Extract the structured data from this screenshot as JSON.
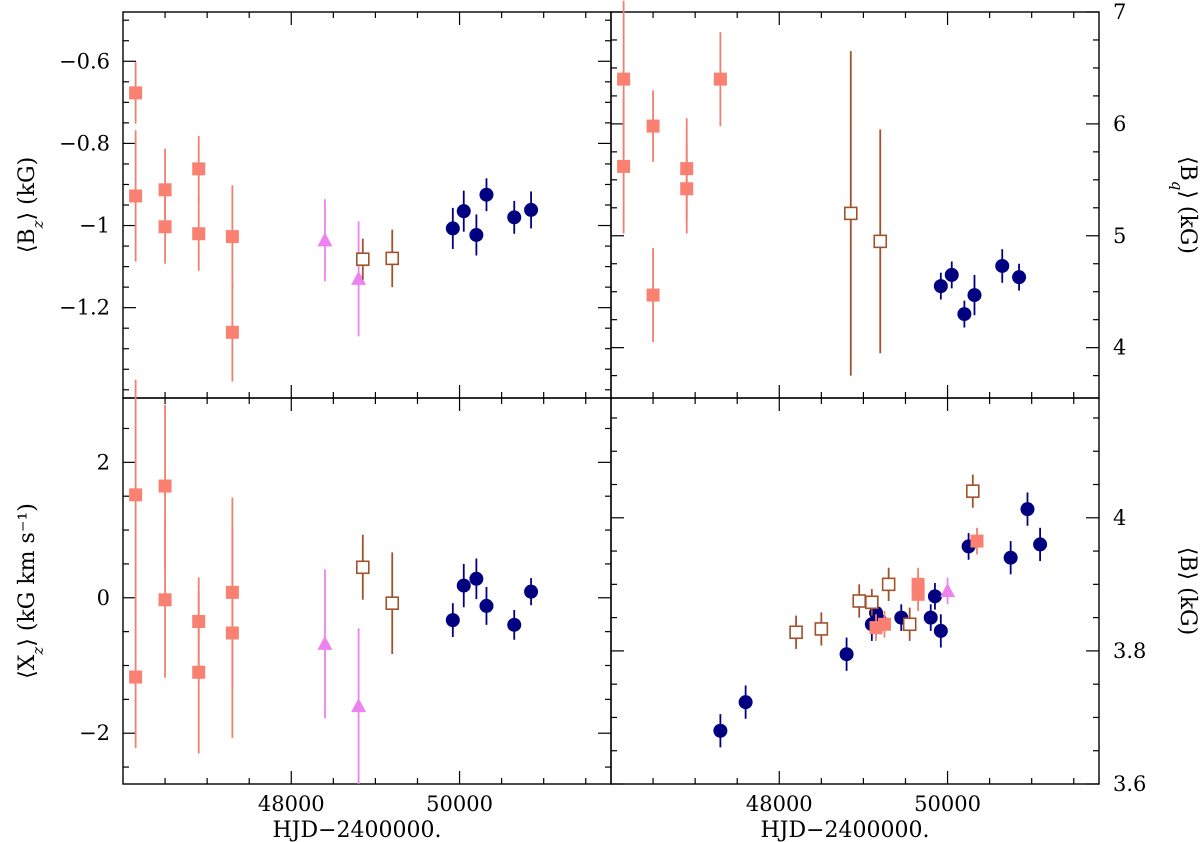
{
  "chart_data": [
    {
      "panel": "top-left",
      "type": "scatter",
      "ylabel": "⟨B_z⟩ (kG)",
      "y_side": "left",
      "xlim": [
        46000,
        51800
      ],
      "ylim": [
        -1.42,
        -0.48
      ],
      "y_inverted": true,
      "y_ticks": [
        -0.6,
        -0.8,
        -1.0,
        -1.2
      ],
      "y_tick_labels": [
        "−0.6",
        "−0.8",
        "−1",
        "−1.2"
      ],
      "series": [
        {
          "name": "salmon filled squares",
          "marker": "square-filled",
          "color": "#FA8072",
          "points": [
            [
              46150,
              -0.677,
              0.075
            ],
            [
              46150,
              -0.928,
              0.16
            ],
            [
              46500,
              -0.913,
              0.1
            ],
            [
              46500,
              -1.003,
              0.09
            ],
            [
              46900,
              -0.862,
              0.08
            ],
            [
              46900,
              -1.02,
              0.09
            ],
            [
              47300,
              -1.027,
              0.125
            ],
            [
              47300,
              -1.26,
              0.12
            ]
          ]
        },
        {
          "name": "violet triangles",
          "marker": "triangle-filled",
          "color": "#EE82EE",
          "points": [
            [
              48400,
              -1.036,
              0.1
            ],
            [
              48800,
              -1.13,
              0.14
            ]
          ]
        },
        {
          "name": "brown open squares",
          "marker": "square-open",
          "color": "#A0522D",
          "points": [
            [
              48850,
              -1.082,
              0.05
            ],
            [
              49200,
              -1.08,
              0.07
            ]
          ]
        },
        {
          "name": "navy circles",
          "marker": "circle-filled",
          "color": "#000080",
          "points": [
            [
              49920,
              -1.007,
              0.05
            ],
            [
              50050,
              -0.965,
              0.05
            ],
            [
              50200,
              -1.023,
              0.05
            ],
            [
              50320,
              -0.925,
              0.04
            ],
            [
              50650,
              -0.98,
              0.04
            ],
            [
              50850,
              -0.962,
              0.045
            ]
          ]
        }
      ]
    },
    {
      "panel": "top-right",
      "type": "scatter",
      "ylabel": "⟨B_q⟩ (kG)",
      "y_side": "right",
      "xlim": [
        46000,
        51800
      ],
      "ylim": [
        3.55,
        7.0
      ],
      "y_inverted": false,
      "y_ticks": [
        4,
        5,
        6,
        7
      ],
      "y_tick_labels": [
        "4",
        "5",
        "6",
        "7"
      ],
      "series": [
        {
          "name": "salmon filled squares",
          "marker": "square-filled",
          "color": "#FA8072",
          "points": [
            [
              46150,
              6.4,
              0.7
            ],
            [
              46150,
              5.62,
              0.6
            ],
            [
              46500,
              5.98,
              0.32
            ],
            [
              46500,
              4.47,
              0.42
            ],
            [
              46900,
              5.6,
              0.45
            ],
            [
              46900,
              5.42,
              0.4
            ],
            [
              47300,
              6.4,
              0.42
            ]
          ]
        },
        {
          "name": "brown open squares",
          "marker": "square-open",
          "color": "#A0522D",
          "points": [
            [
              48850,
              5.2,
              1.45
            ],
            [
              49200,
              4.95,
              1.0
            ]
          ]
        },
        {
          "name": "navy circles",
          "marker": "circle-filled",
          "color": "#000080",
          "points": [
            [
              49920,
              4.55,
              0.12
            ],
            [
              50050,
              4.65,
              0.12
            ],
            [
              50200,
              4.3,
              0.12
            ],
            [
              50320,
              4.47,
              0.18
            ],
            [
              50650,
              4.73,
              0.15
            ],
            [
              50850,
              4.63,
              0.12
            ]
          ]
        }
      ]
    },
    {
      "panel": "bottom-left",
      "type": "scatter",
      "xlabel": "HJD−2400000.",
      "ylabel": "⟨X_z⟩ (kG km s⁻¹)",
      "y_side": "left",
      "xlim": [
        46000,
        51800
      ],
      "ylim": [
        -2.75,
        2.95
      ],
      "y_inverted": false,
      "x_ticks": [
        48000,
        50000
      ],
      "x_tick_labels": [
        "48000",
        "50000"
      ],
      "y_ticks": [
        2,
        0,
        -2
      ],
      "y_tick_labels": [
        "2",
        "0",
        "−2"
      ],
      "series": [
        {
          "name": "salmon filled squares",
          "marker": "square-filled",
          "color": "#FA8072",
          "points": [
            [
              46150,
              1.52,
              1.7
            ],
            [
              46150,
              -1.17,
              1.05
            ],
            [
              46500,
              1.65,
              1.2
            ],
            [
              46500,
              -0.03,
              1.15
            ],
            [
              46900,
              -0.35,
              0.65
            ],
            [
              46900,
              -1.1,
              1.2
            ],
            [
              47300,
              0.08,
              1.4
            ],
            [
              47300,
              -0.52,
              1.55
            ]
          ]
        },
        {
          "name": "violet triangles",
          "marker": "triangle-filled",
          "color": "#EE82EE",
          "points": [
            [
              48400,
              -0.68,
              1.1
            ],
            [
              48800,
              -1.6,
              1.15
            ]
          ]
        },
        {
          "name": "brown open squares",
          "marker": "square-open",
          "color": "#A0522D",
          "points": [
            [
              48850,
              0.45,
              0.48
            ],
            [
              49200,
              -0.08,
              0.75
            ]
          ]
        },
        {
          "name": "navy circles",
          "marker": "circle-filled",
          "color": "#000080",
          "points": [
            [
              49920,
              -0.33,
              0.25
            ],
            [
              50050,
              0.18,
              0.32
            ],
            [
              50200,
              0.28,
              0.3
            ],
            [
              50320,
              -0.12,
              0.28
            ],
            [
              50650,
              -0.4,
              0.22
            ],
            [
              50850,
              0.09,
              0.2
            ]
          ]
        }
      ]
    },
    {
      "panel": "bottom-right",
      "type": "scatter",
      "xlabel": "HJD−2400000.",
      "ylabel": "⟨B⟩ (kG)",
      "y_side": "right",
      "xlim": [
        46000,
        51800
      ],
      "ylim": [
        3.6,
        4.18
      ],
      "y_inverted": false,
      "x_ticks": [
        48000,
        50000
      ],
      "x_tick_labels": [
        "48000",
        "50000"
      ],
      "y_ticks": [
        3.6,
        3.8,
        4.0
      ],
      "y_tick_labels": [
        "3.6",
        "3.8",
        "4"
      ],
      "series": [
        {
          "name": "navy circles",
          "marker": "circle-filled",
          "color": "#000080",
          "points": [
            [
              47300,
              3.68,
              0.025
            ],
            [
              47600,
              3.723,
              0.025
            ],
            [
              48800,
              3.795,
              0.025
            ],
            [
              49100,
              3.84,
              0.025
            ],
            [
              49150,
              3.857,
              0.025
            ],
            [
              49200,
              3.845,
              0.02
            ],
            [
              49450,
              3.85,
              0.02
            ],
            [
              49800,
              3.85,
              0.02
            ],
            [
              49850,
              3.882,
              0.02
            ],
            [
              49920,
              3.83,
              0.025
            ],
            [
              50250,
              3.957,
              0.02
            ],
            [
              50750,
              3.94,
              0.025
            ],
            [
              50950,
              4.013,
              0.025
            ],
            [
              51100,
              3.96,
              0.025
            ]
          ]
        },
        {
          "name": "brown open squares",
          "marker": "square-open",
          "color": "#A0522D",
          "points": [
            [
              48200,
              3.828,
              0.025
            ],
            [
              48500,
              3.833,
              0.025
            ],
            [
              48950,
              3.875,
              0.025
            ],
            [
              49100,
              3.873,
              0.02
            ],
            [
              49300,
              3.9,
              0.025
            ],
            [
              49550,
              3.84,
              0.025
            ],
            [
              50300,
              4.04,
              0.025
            ]
          ]
        },
        {
          "name": "salmon filled squares",
          "marker": "square-filled",
          "color": "#FA8072",
          "points": [
            [
              49150,
              3.835,
              0.02
            ],
            [
              49250,
              3.84,
              0.02
            ],
            [
              49650,
              3.885,
              0.025
            ],
            [
              49650,
              3.9,
              0.025
            ],
            [
              50350,
              3.965,
              0.02
            ]
          ]
        },
        {
          "name": "violet triangles",
          "marker": "triangle-filled",
          "color": "#EE82EE",
          "points": [
            [
              50000,
              3.89,
              0.02
            ]
          ]
        }
      ]
    }
  ]
}
